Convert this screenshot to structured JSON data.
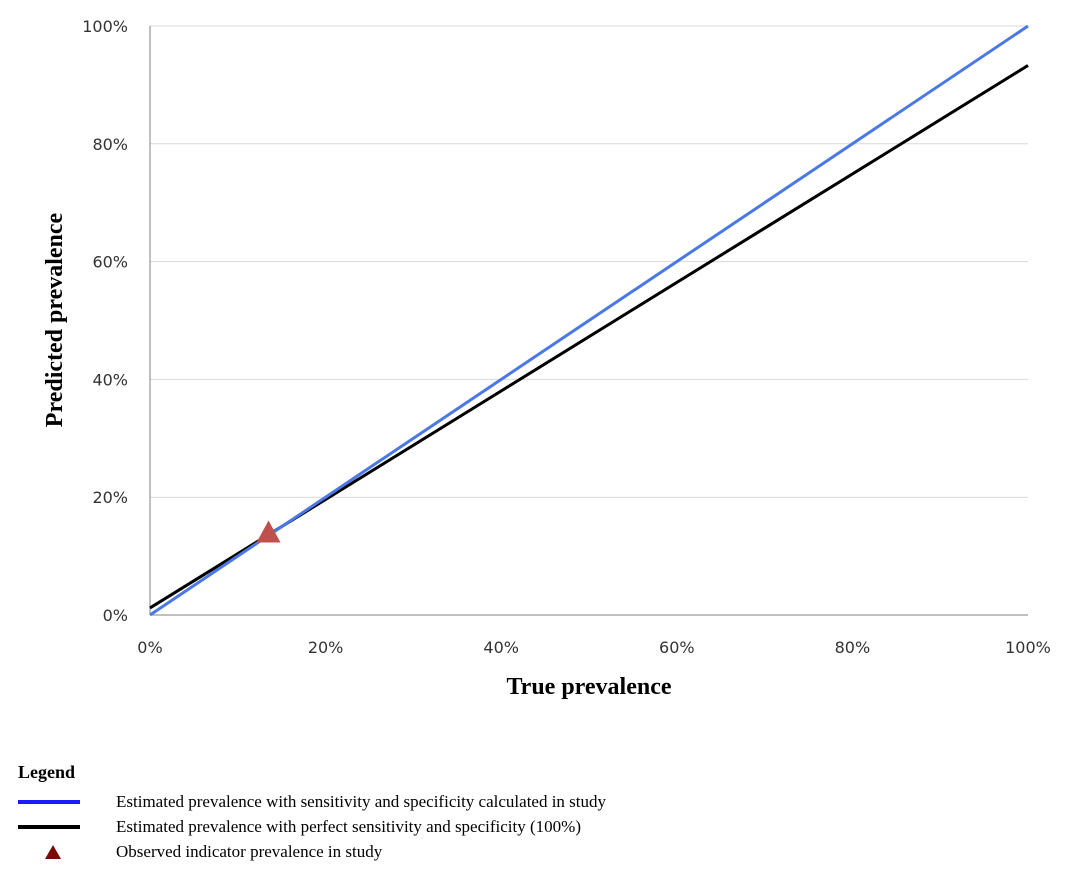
{
  "chart_data": {
    "type": "line",
    "xlabel": "True prevalence",
    "ylabel": "Predicted prevalence",
    "xlim": [
      0,
      100
    ],
    "ylim": [
      0,
      100
    ],
    "x_ticks": [
      "0%",
      "20%",
      "40%",
      "60%",
      "80%",
      "100%"
    ],
    "y_ticks": [
      "0%",
      "20%",
      "40%",
      "60%",
      "80%",
      "100%"
    ],
    "grid": "horizontal",
    "series": [
      {
        "name": "Estimated prevalence with sensitivity and specificity calculated in study",
        "color": "#4a78e6",
        "x": [
          0,
          100
        ],
        "y": [
          0,
          100
        ]
      },
      {
        "name": "Estimated prevalence with perfect sensitivity and specificity (100%)",
        "color": "#000000",
        "x": [
          0,
          100
        ],
        "y": [
          1.2,
          93.3
        ]
      }
    ],
    "points": [
      {
        "name": "Observed indicator prevalence in study",
        "color": "#c0504d",
        "x": 13.5,
        "y": 13.5
      }
    ]
  },
  "legend": {
    "title": "Legend",
    "items": [
      {
        "label": "Estimated prevalence with sensitivity and specificity calculated in study",
        "color": "#1a1aff",
        "marker": "line"
      },
      {
        "label": "Estimated prevalence with perfect sensitivity and specificity (100%)",
        "color": "#000000",
        "marker": "line"
      },
      {
        "label": "Observed indicator prevalence in study",
        "color": "#7a0a0a",
        "marker": "triangle"
      }
    ]
  }
}
